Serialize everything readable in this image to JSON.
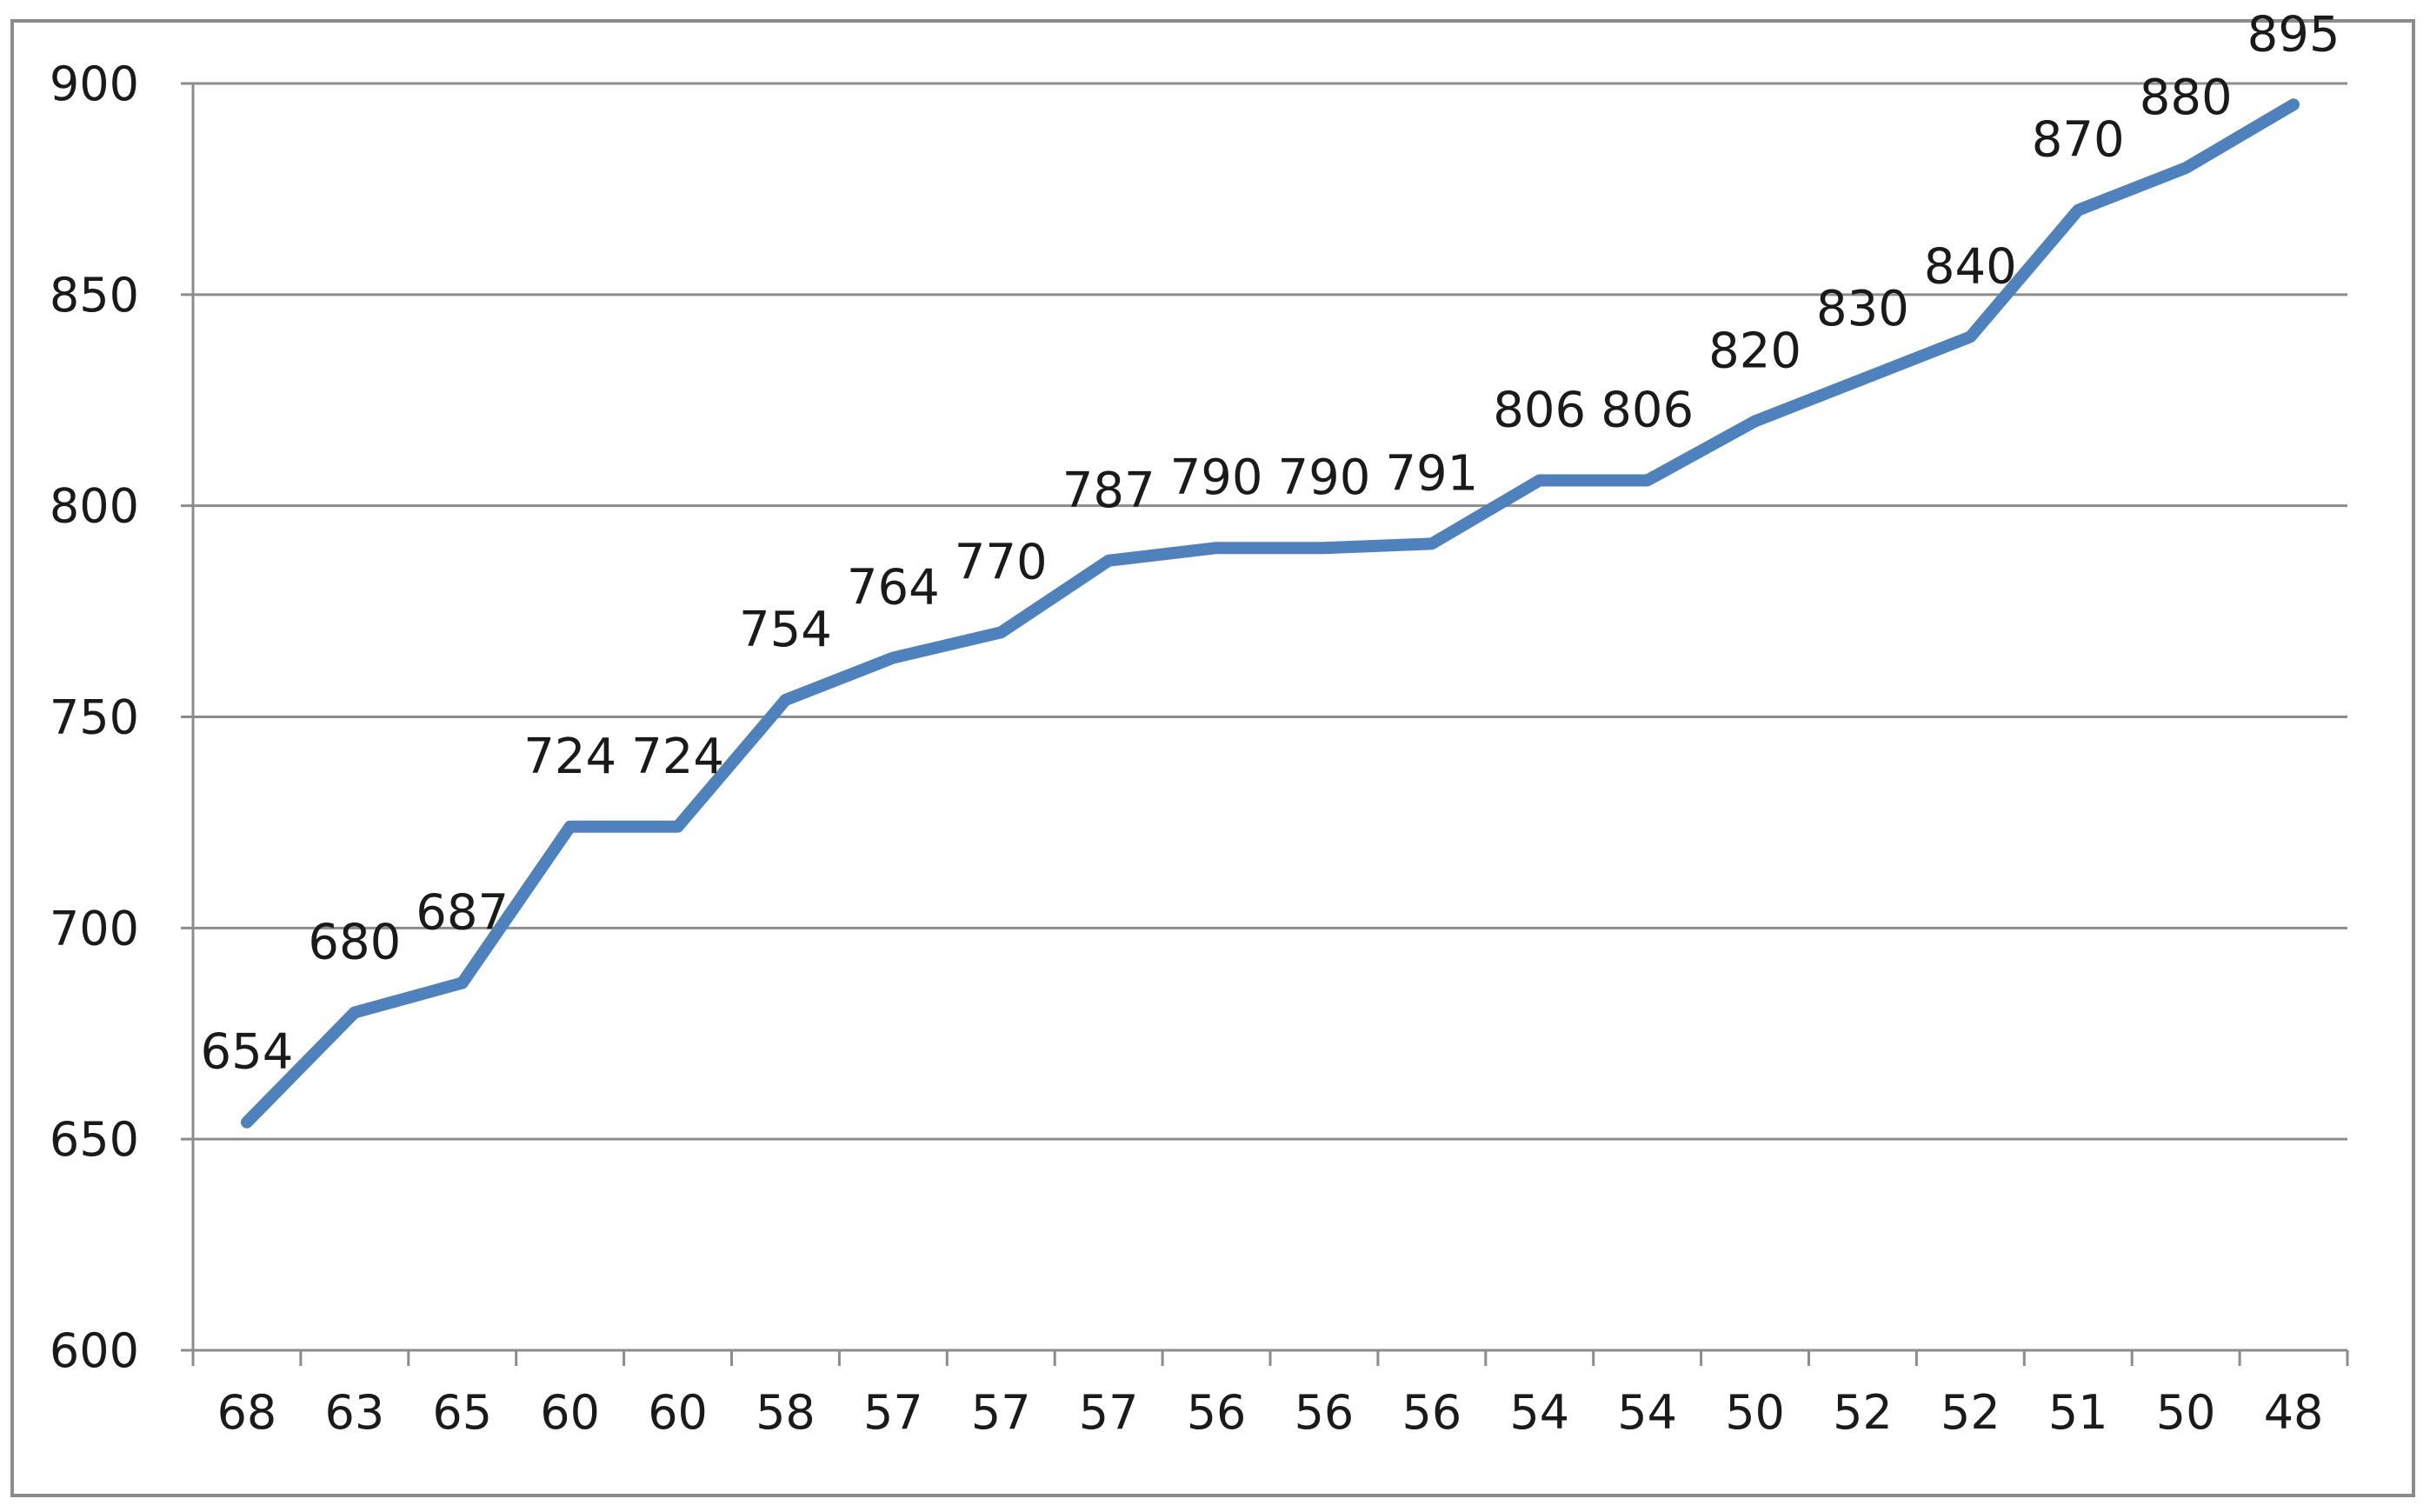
{
  "chart_data": {
    "type": "line",
    "title": "",
    "xlabel": "",
    "ylabel": "",
    "categories": [
      "68",
      "63",
      "65",
      "60",
      "60",
      "58",
      "57",
      "57",
      "57",
      "56",
      "56",
      "56",
      "54",
      "54",
      "50",
      "52",
      "52",
      "51",
      "50",
      "48"
    ],
    "series": [
      {
        "values": [
          654,
          680,
          687,
          724,
          724,
          754,
          764,
          770,
          787,
          790,
          790,
          791,
          806,
          806,
          820,
          830,
          840,
          870,
          880,
          895
        ]
      }
    ],
    "data_labels": [
      "654",
      "680",
      "687",
      "724",
      "724",
      "754",
      "764",
      "770",
      "787",
      "790",
      "790",
      "791",
      "806",
      "806",
      "820",
      "830",
      "840",
      "870",
      "880",
      "895"
    ],
    "ylim": [
      600,
      900
    ],
    "y_ticks": [
      600,
      650,
      700,
      750,
      800,
      850,
      900
    ],
    "grid": "horizontal",
    "legend": "none",
    "colors": {
      "line": "#4f81bd",
      "grid": "#8c8c8c",
      "axis": "#8c8c8c",
      "text": "#1a1a1a"
    }
  }
}
